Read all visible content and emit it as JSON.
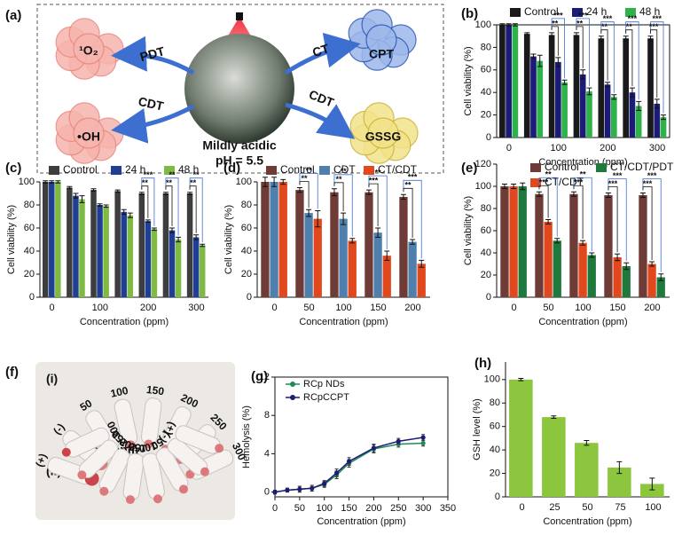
{
  "panel_a": {
    "label": "(a)",
    "texts": [
      "¹O₂",
      "•OH",
      "CPT",
      "GSSG"
    ],
    "arrows": [
      "PDT",
      "CDT",
      "CT",
      "CDT"
    ],
    "condition": [
      "Mildly acidic",
      "pH = 5.5"
    ]
  },
  "panel_f": {
    "label": "(f)",
    "sub_labels": [
      "(i)",
      "(ii)"
    ],
    "top_tubes": [
      "(+)",
      "(-)",
      "50",
      "100",
      "150",
      "200",
      "250",
      "300"
    ],
    "caption": "Conc. ppm",
    "bottom_tubes": [
      "300",
      "250",
      "200",
      "150",
      "100",
      "50",
      "(-)",
      "(+)"
    ]
  },
  "chart_data": [
    {
      "type": "bar",
      "panel": "(b)",
      "x_label": "Concentration (ppm)",
      "y_label": "Cell viability (%)",
      "categories": [
        "0",
        null,
        "100",
        null,
        "200",
        null,
        "300"
      ],
      "series": [
        {
          "name": "Control",
          "color": "#1a1a1a",
          "values": [
            100,
            92,
            91,
            91,
            88,
            88,
            88
          ],
          "errors": [
            1,
            1,
            2,
            2,
            2,
            2,
            2
          ]
        },
        {
          "name": "24 h",
          "color": "#1c1c78",
          "values": [
            100,
            72,
            67,
            56,
            47,
            40,
            30
          ],
          "errors": [
            1,
            2,
            4,
            4,
            2,
            4,
            4
          ]
        },
        {
          "name": "48 h",
          "color": "#2db34a",
          "values": [
            100,
            68,
            49,
            41,
            36,
            28,
            18
          ],
          "errors": [
            1,
            5,
            2,
            3,
            2,
            4,
            2
          ]
        }
      ],
      "significance": [
        [],
        [],
        [
          "***",
          "**"
        ],
        [
          "***",
          "**"
        ],
        [
          "***",
          "**"
        ],
        [
          "***",
          "**"
        ],
        [
          "***",
          "***"
        ]
      ],
      "ylim": [
        0,
        100
      ],
      "yticks": [
        0,
        20,
        40,
        60,
        80,
        100
      ]
    },
    {
      "type": "bar",
      "panel": "(c)",
      "x_label": "Concentration (ppm)",
      "y_label": "Cell viability (%)",
      "categories": [
        "0",
        null,
        "100",
        null,
        "200",
        null,
        "300"
      ],
      "series": [
        {
          "name": "Control",
          "color": "#3d3d3d",
          "values": [
            100,
            95,
            93,
            92,
            90,
            90,
            90
          ],
          "errors": [
            1,
            1,
            1,
            1,
            1,
            1,
            1
          ]
        },
        {
          "name": "24 h",
          "color": "#1f3f94",
          "values": [
            100,
            88,
            80,
            74,
            66,
            58,
            52
          ],
          "errors": [
            1,
            2,
            1,
            2,
            1,
            2,
            2
          ]
        },
        {
          "name": "48 h",
          "color": "#7fba42",
          "values": [
            100,
            85,
            79,
            71,
            59,
            50,
            45
          ],
          "errors": [
            1,
            3,
            1,
            2,
            1,
            2,
            1
          ]
        }
      ],
      "significance": [
        [],
        [],
        [],
        [],
        [
          "***",
          "**"
        ],
        [
          "**",
          "**"
        ],
        [
          "**",
          "**"
        ]
      ],
      "ylim": [
        0,
        100
      ],
      "yticks": [
        0,
        20,
        40,
        60,
        80,
        100
      ]
    },
    {
      "type": "bar",
      "panel": "(d)",
      "x_label": "Concentration (ppm)",
      "y_label": "Cell viability (%)",
      "categories": [
        "0",
        "50",
        "100",
        "150",
        "200"
      ],
      "series": [
        {
          "name": "Control",
          "color": "#6e3b36",
          "values": [
            100,
            93,
            91,
            91,
            87
          ],
          "errors": [
            4,
            2,
            3,
            2,
            2
          ]
        },
        {
          "name": "CDT",
          "color": "#4f80ad",
          "values": [
            100,
            73,
            68,
            56,
            48
          ],
          "errors": [
            4,
            3,
            5,
            4,
            2
          ]
        },
        {
          "name": "CT/CDT",
          "color": "#e2481e",
          "values": [
            100,
            68,
            49,
            36,
            29
          ],
          "errors": [
            2,
            7,
            2,
            4,
            3
          ]
        }
      ],
      "significance": [
        [],
        [
          "**",
          "**"
        ],
        [
          "**",
          "**"
        ],
        [
          "**",
          "***"
        ],
        [
          "***",
          "**"
        ]
      ],
      "ylim": [
        0,
        100
      ],
      "yticks": [
        0,
        20,
        40,
        60,
        80,
        100
      ]
    },
    {
      "type": "bar",
      "panel": "(e)",
      "x_label": "Concentration (ppm)",
      "y_label": "Cell viability (%)",
      "categories": [
        "0",
        "50",
        "100",
        "150",
        "200"
      ],
      "series": [
        {
          "name": "Control",
          "color": "#6e3b36",
          "values": [
            100,
            93,
            93,
            92,
            92
          ],
          "errors": [
            2,
            2,
            2,
            2,
            2
          ]
        },
        {
          "name": "CT/CDT",
          "color": "#e2481e",
          "values": [
            100,
            68,
            49,
            36,
            30
          ],
          "errors": [
            2,
            2,
            2,
            3,
            2
          ]
        },
        {
          "name": "CT/CDT/PDT",
          "color": "#1d7a3c",
          "values": [
            100,
            51,
            38,
            28,
            18
          ],
          "errors": [
            3,
            2,
            2,
            3,
            3
          ]
        }
      ],
      "significance": [
        [],
        [
          "**",
          "***"
        ],
        [
          "**",
          "***"
        ],
        [
          "***",
          "***"
        ],
        [
          "***",
          "***"
        ]
      ],
      "ylim": [
        0,
        120
      ],
      "yticks": [
        0,
        20,
        40,
        60,
        80,
        100,
        120
      ]
    },
    {
      "type": "line",
      "panel": "(g)",
      "x_label": "Concentration (ppm)",
      "y_label": "Hemolysis (%)",
      "x": [
        0,
        25,
        50,
        75,
        100,
        125,
        150,
        200,
        250,
        300
      ],
      "series": [
        {
          "name": "RCp NDs",
          "color": "#1e8a55",
          "values": [
            0,
            0.2,
            0.3,
            0.4,
            0.8,
            1.8,
            3.0,
            4.5,
            5.0,
            5.1
          ],
          "errors": [
            0.2,
            0.2,
            0.3,
            0.3,
            0.3,
            0.4,
            0.4,
            0.4,
            0.3,
            0.3
          ]
        },
        {
          "name": "RCpCCPT",
          "color": "#1c1c78",
          "values": [
            0,
            0.2,
            0.3,
            0.4,
            0.9,
            2.0,
            3.2,
            4.6,
            5.3,
            5.7
          ],
          "errors": [
            0.2,
            0.2,
            0.3,
            0.3,
            0.3,
            0.4,
            0.4,
            0.4,
            0.3,
            0.3
          ]
        }
      ],
      "xlim": [
        0,
        350
      ],
      "xticks": [
        0,
        50,
        100,
        150,
        200,
        250,
        300,
        350
      ],
      "ylim": [
        -0.5,
        12
      ],
      "yticks": [
        0,
        4,
        8,
        12
      ]
    },
    {
      "type": "bar",
      "panel": "(h)",
      "x_label": "Concentration (ppm)",
      "y_label": "GSH level (%)",
      "categories": [
        "0",
        "25",
        "50",
        "75",
        "100"
      ],
      "series": [
        {
          "name": null,
          "color": "#8cc63f",
          "values": [
            100,
            68,
            46,
            25,
            11
          ],
          "errors": [
            1,
            1,
            2,
            5,
            5
          ]
        }
      ],
      "ylim": [
        0,
        115
      ],
      "yticks": [
        0,
        20,
        40,
        60,
        80,
        100
      ]
    }
  ]
}
